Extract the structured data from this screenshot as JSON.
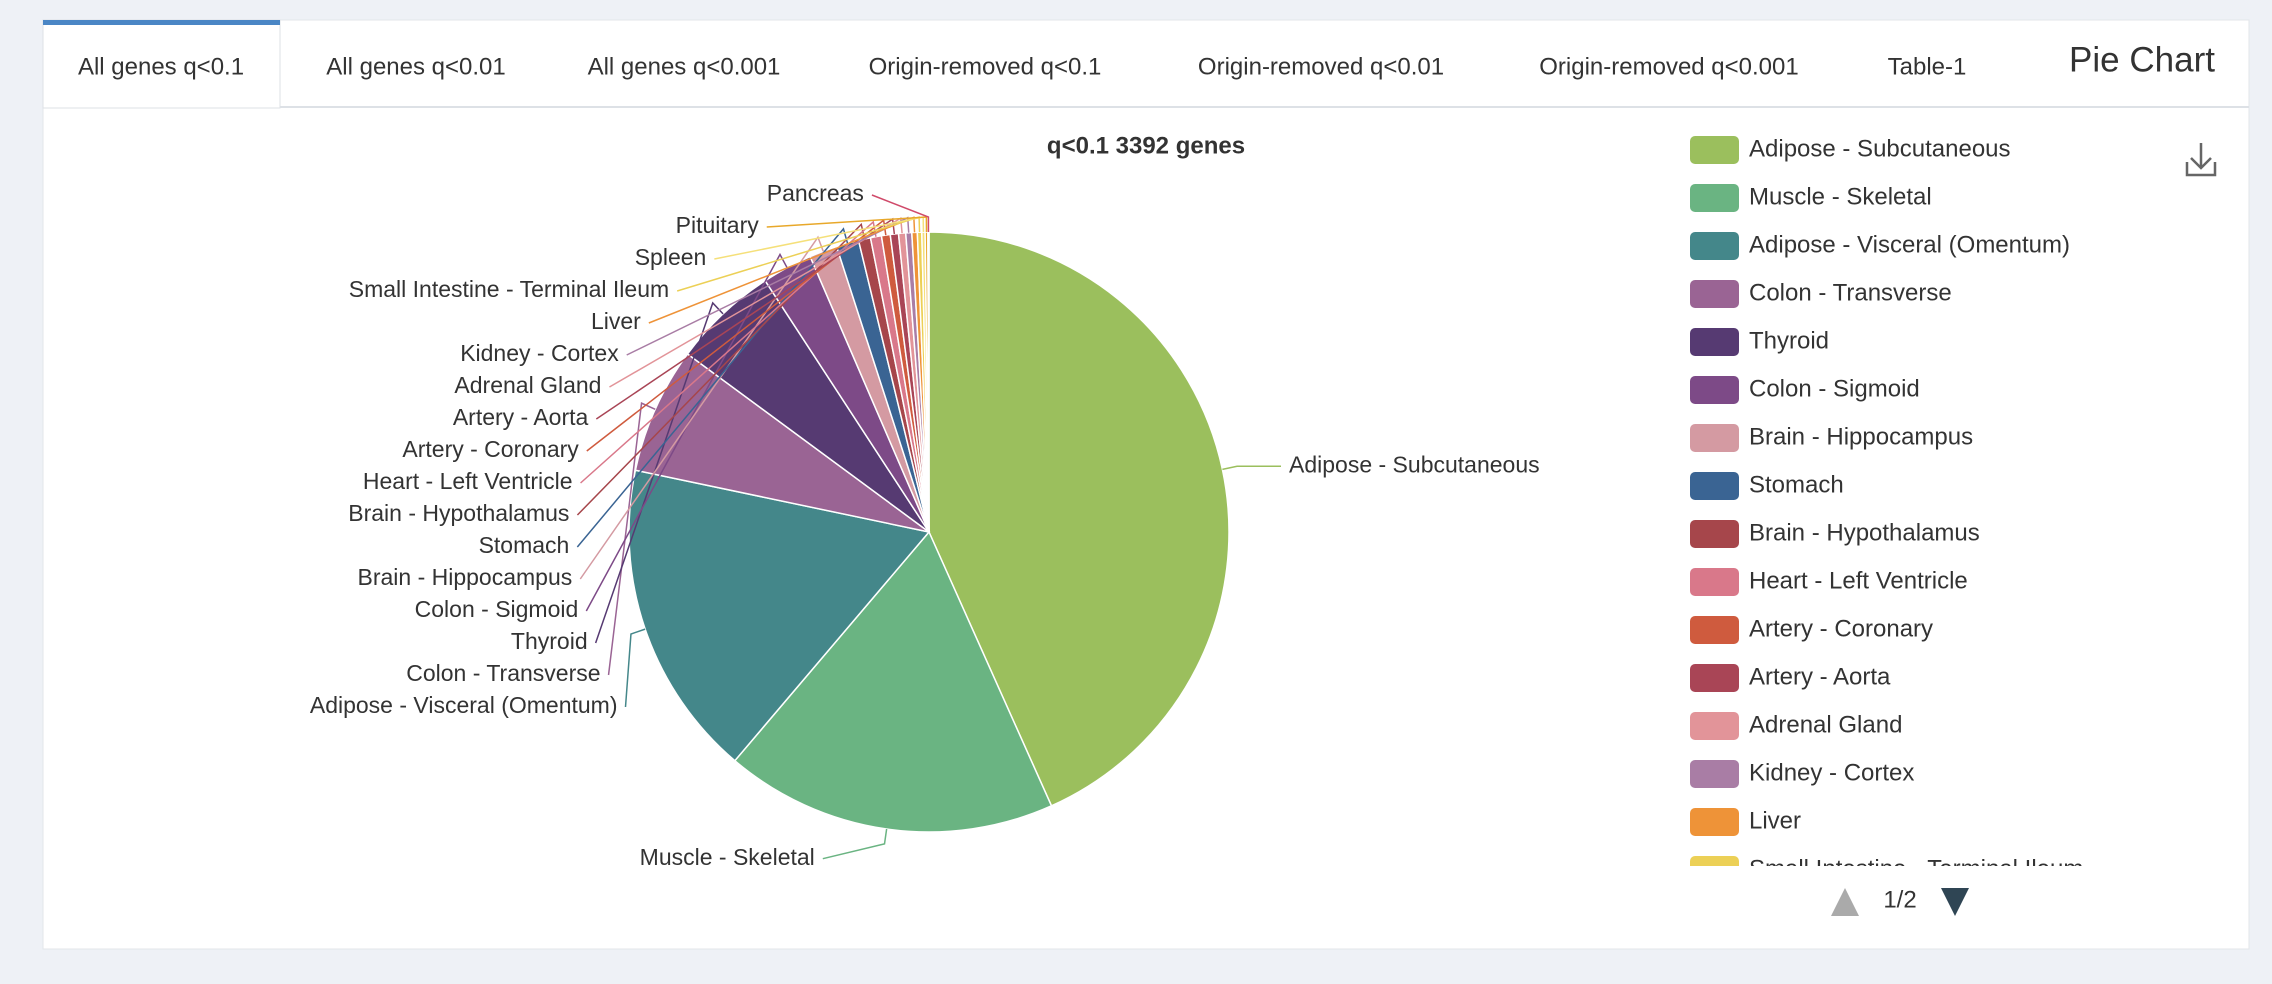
{
  "tabs": [
    "All genes q<0.1",
    "All genes q<0.01",
    "All genes q<0.001",
    "Origin-removed q<0.1",
    "Origin-removed q<0.01",
    "Origin-removed q<0.001",
    "Table-1"
  ],
  "heading": "Pie Chart",
  "legend_page": "1/2",
  "chart_data": {
    "type": "pie",
    "title": "q<0.1 3392 genes",
    "categories": [
      "Adipose - Subcutaneous",
      "Muscle - Skeletal",
      "Adipose - Visceral (Omentum)",
      "Colon - Transverse",
      "Thyroid",
      "Colon - Sigmoid",
      "Brain - Hippocampus",
      "Stomach",
      "Brain - Hypothalamus",
      "Heart - Left Ventricle",
      "Artery - Coronary",
      "Artery - Aorta",
      "Adrenal Gland",
      "Kidney - Cortex",
      "Liver",
      "Small Intestine - Terminal Ileum",
      "Spleen",
      "Pituitary",
      "Pancreas"
    ],
    "values": [
      1469,
      607,
      580,
      231,
      193,
      92,
      51,
      41,
      22,
      20,
      16,
      15,
      13,
      11,
      10,
      8,
      6,
      5,
      2
    ],
    "colors": [
      "#9bbf5d",
      "#6ab482",
      "#44878a",
      "#9a6494",
      "#563a72",
      "#7d4a87",
      "#d49aa2",
      "#3a6493",
      "#a6464b",
      "#d9788a",
      "#cf5b3e",
      "#a94556",
      "#e29499",
      "#a97da5",
      "#ee9338",
      "#ecd056",
      "#f5e07a",
      "#e8a82a",
      "#d04a6a"
    ]
  }
}
